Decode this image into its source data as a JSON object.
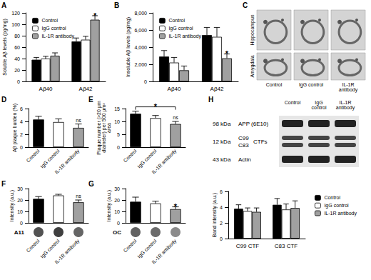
{
  "chart_data": [
    {
      "panel": "A",
      "type": "bar",
      "categories": [
        "Aβ40",
        "Aβ42"
      ],
      "ylabel": "Soluble Aβ levels (pg/mg)",
      "ylim": [
        0,
        120
      ],
      "yticks": [
        0,
        20,
        40,
        60,
        80,
        100,
        120
      ],
      "legend": "upper left",
      "series": [
        {
          "name": "Control",
          "color": "#000000",
          "values": [
            38,
            70
          ],
          "errors": [
            4,
            6
          ]
        },
        {
          "name": "IgG control",
          "color": "#ffffff",
          "values": [
            40,
            73
          ],
          "errors": [
            4,
            6
          ]
        },
        {
          "name": "IL-1R antibody",
          "color": "#a0a0a0",
          "values": [
            45,
            108
          ],
          "errors": [
            5,
            7
          ]
        }
      ],
      "annotations": [
        {
          "text": "*",
          "category": "Aβ42",
          "series": "IL-1R antibody"
        }
      ]
    },
    {
      "panel": "B",
      "type": "bar",
      "categories": [
        "Aβ40",
        "Aβ42"
      ],
      "ylabel": "Insoluble Aβ levels (pg/mg)",
      "ylim": [
        0,
        8000
      ],
      "yticks": [
        0,
        2000,
        4000,
        6000,
        8000
      ],
      "legend": "upper left",
      "series": [
        {
          "name": "Control",
          "color": "#000000",
          "values": [
            2900,
            5400
          ],
          "errors": [
            700,
            900
          ]
        },
        {
          "name": "IgG control",
          "color": "#ffffff",
          "values": [
            2200,
            5200
          ],
          "errors": [
            600,
            1100
          ]
        },
        {
          "name": "IL-1R antibody",
          "color": "#a0a0a0",
          "values": [
            1300,
            2700
          ],
          "errors": [
            500,
            500
          ]
        }
      ],
      "annotations": [
        {
          "text": "*",
          "category": "Aβ42",
          "series": "IL-1R antibody"
        }
      ]
    },
    {
      "panel": "D",
      "type": "bar",
      "categories": [
        "Control",
        "IgG control",
        "IL-1R antibody"
      ],
      "ylabel": "Aβ plaque burden (%)",
      "ylim": [
        0,
        6
      ],
      "yticks": [
        0,
        2,
        4,
        6
      ],
      "values": [
        4.3,
        3.9,
        3.0
      ],
      "errors": [
        0.5,
        0.5,
        0.6
      ],
      "colors": [
        "#000000",
        "#ffffff",
        "#a0a0a0"
      ],
      "annotations": [
        {
          "text": "ns",
          "category": "IL-1R antibody"
        }
      ]
    },
    {
      "panel": "E",
      "type": "bar",
      "categories": [
        "Control",
        "IgG control",
        "IL-1R antibody"
      ],
      "ylabel": "Plaque number (>20 μm diameter) per 500 μm² area",
      "ylim": [
        0,
        15
      ],
      "yticks": [
        0,
        5,
        10,
        15
      ],
      "values": [
        13,
        11.3,
        9
      ],
      "errors": [
        1,
        1,
        1
      ],
      "colors": [
        "#000000",
        "#ffffff",
        "#a0a0a0"
      ],
      "annotations": [
        {
          "text": "*",
          "from": "Control",
          "to": "IL-1R antibody"
        },
        {
          "text": "ns",
          "category": "IL-1R antibody"
        }
      ]
    },
    {
      "panel": "F",
      "type": "bar",
      "categories": [
        "Control",
        "IgG control",
        "IL-1R antibody"
      ],
      "ylabel": "Intensity (a.u.)",
      "ylim": [
        0,
        30
      ],
      "yticks": [
        0,
        10,
        20,
        30
      ],
      "values": [
        21,
        24,
        18
      ],
      "errors": [
        2,
        1,
        2
      ],
      "colors": [
        "#000000",
        "#ffffff",
        "#a0a0a0"
      ],
      "dot_blot": "A11",
      "annotations": [
        {
          "text": "ns",
          "category": "IL-1R antibody"
        }
      ]
    },
    {
      "panel": "G",
      "type": "bar",
      "categories": [
        "Control",
        "IgG control",
        "IL-1R antibody"
      ],
      "ylabel": "Intensity (a.u.)",
      "ylim": [
        0,
        30
      ],
      "yticks": [
        0,
        10,
        20,
        30
      ],
      "values": [
        18.5,
        17,
        12
      ],
      "errors": [
        4,
        2,
        2
      ],
      "colors": [
        "#000000",
        "#ffffff",
        "#a0a0a0"
      ],
      "dot_blot": "OC",
      "annotations": [
        {
          "text": "*",
          "category": "IL-1R antibody"
        }
      ]
    },
    {
      "type": "bar",
      "categories": [
        "C99 CTF",
        "C83 CTF"
      ],
      "ylabel": "Band intensity (a.u.)",
      "ylim": [
        0,
        6
      ],
      "yticks": [
        0,
        2,
        4,
        6
      ],
      "legend": "right",
      "series": [
        {
          "name": "Control",
          "color": "#000000",
          "values": [
            3.8,
            4.3
          ],
          "errors": [
            0.5,
            0.8
          ]
        },
        {
          "name": "IgG control",
          "color": "#ffffff",
          "values": [
            3.5,
            3.7
          ],
          "errors": [
            0.4,
            0.7
          ]
        },
        {
          "name": "IL-1R antibody",
          "color": "#a0a0a0",
          "values": [
            3.4,
            3.9
          ],
          "errors": [
            0.5,
            0.9
          ]
        }
      ]
    }
  ],
  "images": {
    "panel": "C",
    "rows": [
      "Hippocampus",
      "Amygdala"
    ],
    "columns": [
      "Control",
      "IgG control",
      "IL-1R antibody"
    ]
  },
  "western_blot": {
    "panel": "H",
    "columns": [
      "Control",
      "IgG control",
      "IL-1R antibody"
    ],
    "bands": [
      {
        "size": "98 kDa",
        "names": [
          "APP (6E10)"
        ]
      },
      {
        "size": "12 kDa",
        "names": [
          "C99",
          "C83"
        ],
        "group": "CTFs"
      },
      {
        "size": "43 kDa",
        "names": [
          "Actin"
        ]
      }
    ]
  }
}
